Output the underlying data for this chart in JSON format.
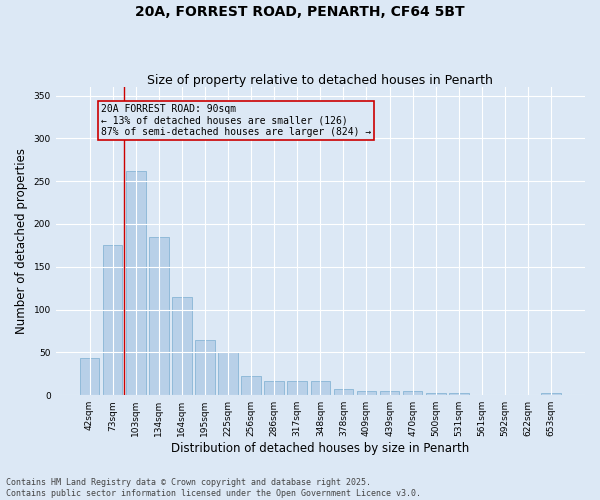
{
  "title": "20A, FORREST ROAD, PENARTH, CF64 5BT",
  "subtitle": "Size of property relative to detached houses in Penarth",
  "xlabel": "Distribution of detached houses by size in Penarth",
  "ylabel": "Number of detached properties",
  "categories": [
    "42sqm",
    "73sqm",
    "103sqm",
    "134sqm",
    "164sqm",
    "195sqm",
    "225sqm",
    "256sqm",
    "286sqm",
    "317sqm",
    "348sqm",
    "378sqm",
    "409sqm",
    "439sqm",
    "470sqm",
    "500sqm",
    "531sqm",
    "561sqm",
    "592sqm",
    "622sqm",
    "653sqm"
  ],
  "values": [
    43,
    175,
    262,
    185,
    115,
    65,
    50,
    22,
    17,
    17,
    17,
    7,
    5,
    5,
    5,
    2,
    2,
    0,
    0,
    0,
    2
  ],
  "bar_color": "#b8d0e8",
  "bar_edge_color": "#7aaed0",
  "bg_color": "#dce8f5",
  "grid_color": "#ffffff",
  "vline_x": 1.5,
  "vline_color": "#cc0000",
  "annotation_text": "20A FORREST ROAD: 90sqm\n← 13% of detached houses are smaller (126)\n87% of semi-detached houses are larger (824) →",
  "annotation_box_color": "#cc0000",
  "ylim": [
    0,
    360
  ],
  "yticks": [
    0,
    50,
    100,
    150,
    200,
    250,
    300,
    350
  ],
  "footnote": "Contains HM Land Registry data © Crown copyright and database right 2025.\nContains public sector information licensed under the Open Government Licence v3.0.",
  "title_fontsize": 10,
  "subtitle_fontsize": 9,
  "tick_fontsize": 6.5,
  "label_fontsize": 8.5,
  "footnote_fontsize": 6
}
